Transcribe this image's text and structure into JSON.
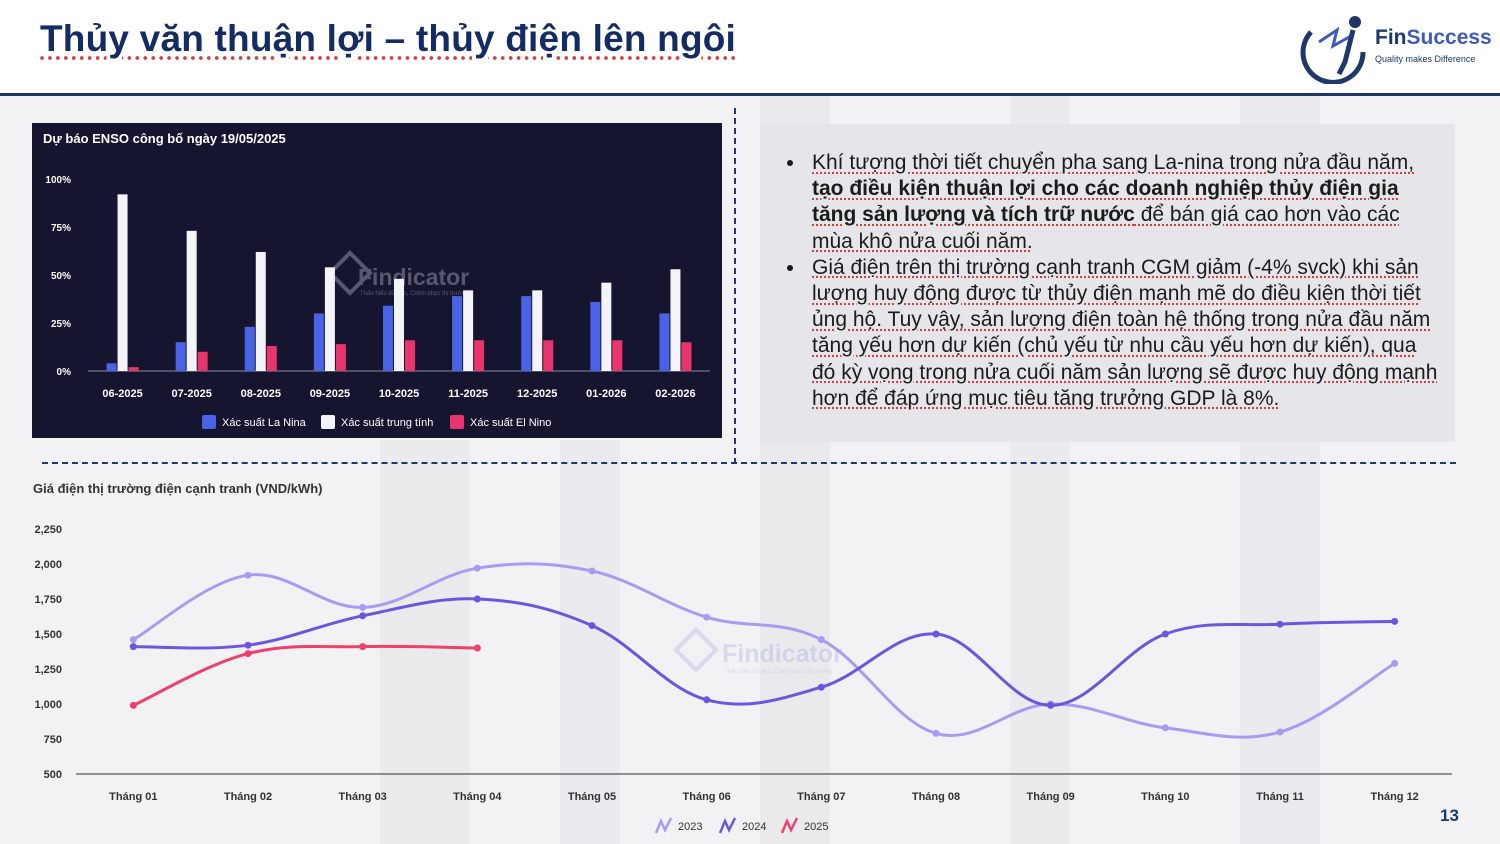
{
  "header": {
    "title": "Thủy văn thuận lợi – thủy điện lên ngôi",
    "logo": {
      "brand_prefix": "Fin",
      "brand_suffix": "Success",
      "tagline": "Quality makes Difference"
    }
  },
  "bullets": [
    {
      "before": "Khí tượng thời tiết chuyển pha sang La-nina trong nửa đầu năm, ",
      "bold": "tạo điều kiện thuận lợi cho các doanh nghiệp thủy điện gia tăng sản lượng và tích trữ nước",
      "after": " để bán giá cao hơn vào các mùa khô nửa cuối năm."
    },
    {
      "before": "Giá điện trên thị trường cạnh tranh CGM giảm (-4% svck) khi sản lượng huy động được từ thủy điện mạnh mẽ do điều kiện thời tiết ủng hộ. Tuy vậy, sản lượng điện toàn hệ thống trong nửa đầu năm tăng yếu hơn dự kiến (chủ yếu từ nhu cầu yếu hơn dự kiến), qua đó kỳ vọng trong nửa cuối năm sản lượng sẽ được huy động mạnh hơn để đáp ứng mục tiêu tăng trưởng GDP là 8%.",
      "bold": "",
      "after": ""
    }
  ],
  "watermark": {
    "text": "Findicator",
    "tagline": "Thấu hiểu dữ liệu, Chinh phục thị trường"
  },
  "page_number": "13",
  "colors": {
    "navy": "#1f3769",
    "la_nina": "#4a63e6",
    "neutral": "#f4f4f8",
    "el_nino": "#e8356d",
    "y2023": "#a79cf2",
    "y2024": "#6d55e0",
    "y2025": "#ef3f6c"
  },
  "chart_data": [
    {
      "type": "bar",
      "title": "Dự báo ENSO công bố ngày 19/05/2025",
      "categories": [
        "06-2025",
        "07-2025",
        "08-2025",
        "09-2025",
        "10-2025",
        "11-2025",
        "12-2025",
        "01-2026",
        "02-2026"
      ],
      "series": [
        {
          "name": "Xác suất La Nina",
          "values": [
            4,
            15,
            23,
            30,
            34,
            39,
            39,
            36,
            30
          ]
        },
        {
          "name": "Xác suất trung tính",
          "values": [
            92,
            73,
            62,
            54,
            48,
            42,
            42,
            46,
            53
          ]
        },
        {
          "name": "Xác suất El Nino",
          "values": [
            2,
            10,
            13,
            14,
            16,
            16,
            16,
            16,
            15
          ]
        }
      ],
      "ylim": [
        0,
        100
      ],
      "yticks": [
        "0%",
        "25%",
        "50%",
        "75%",
        "100%"
      ],
      "legend": "bottom",
      "grid": false
    },
    {
      "type": "line",
      "title": "Giá điện thị trường điện cạnh tranh (VND/kWh)",
      "categories": [
        "Tháng 01",
        "Tháng 02",
        "Tháng 03",
        "Tháng 04",
        "Tháng 05",
        "Tháng 06",
        "Tháng 07",
        "Tháng 08",
        "Tháng 09",
        "Tháng 10",
        "Tháng 11",
        "Tháng 12"
      ],
      "series": [
        {
          "name": "2023",
          "values": [
            1460,
            1920,
            1690,
            1970,
            1950,
            1620,
            1460,
            790,
            1000,
            830,
            800,
            1290
          ]
        },
        {
          "name": "2024",
          "values": [
            1410,
            1420,
            1630,
            1750,
            1560,
            1030,
            1120,
            1500,
            990,
            1500,
            1570,
            1590
          ]
        },
        {
          "name": "2025",
          "values": [
            990,
            1360,
            1410,
            1400,
            null,
            null,
            null,
            null,
            null,
            null,
            null,
            null
          ]
        }
      ],
      "ylim": [
        500,
        2250
      ],
      "yticks": [
        "500",
        "750",
        "1,000",
        "1,250",
        "1,500",
        "1,750",
        "2,000",
        "2,250"
      ],
      "legend": "bottom",
      "grid": false
    }
  ]
}
